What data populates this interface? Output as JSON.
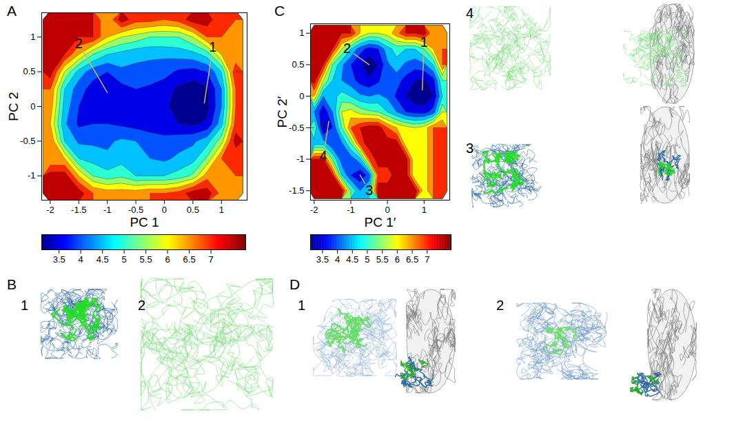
{
  "chart_data": [
    {
      "panel": "A",
      "type": "contour",
      "x_label": "PC 1",
      "y_label": "PC 2",
      "xlim": [
        -2.15,
        1.45
      ],
      "ylim": [
        -1.35,
        1.35
      ],
      "xticks": [
        -2,
        -1.5,
        -1,
        -0.5,
        0,
        0.5,
        1
      ],
      "yticks": [
        -1,
        -0.5,
        0,
        0.5,
        1
      ],
      "x": [
        -2,
        -1.75,
        -1.5,
        -1.25,
        -1,
        -0.75,
        -0.5,
        -0.25,
        0,
        0.25,
        0.5,
        0.75,
        1,
        1.25
      ],
      "y": [
        1.25,
        1,
        0.75,
        0.5,
        0.25,
        0,
        -0.25,
        -0.5,
        -0.75,
        -1,
        -1.25
      ],
      "z": [
        [
          null,
          null,
          null,
          null,
          null,
          7.8,
          7.2,
          7.2,
          7.0,
          7.2,
          7.8,
          null,
          null,
          null
        ],
        [
          null,
          null,
          null,
          7.5,
          6.5,
          6.0,
          5.8,
          5.5,
          5.5,
          5.5,
          6.0,
          7.0,
          null,
          null
        ],
        [
          null,
          7.5,
          6.5,
          5.5,
          5.0,
          4.8,
          4.6,
          4.6,
          4.6,
          4.7,
          4.8,
          5.2,
          6.5,
          null
        ],
        [
          7.8,
          6.0,
          4.8,
          4.2,
          4.0,
          4.4,
          4.4,
          4.3,
          4.2,
          3.9,
          3.8,
          4.0,
          5.0,
          7.5
        ],
        [
          7.0,
          5.0,
          4.2,
          3.8,
          3.6,
          3.8,
          4.0,
          3.9,
          3.7,
          3.4,
          3.2,
          3.4,
          4.5,
          7.0
        ],
        [
          6.8,
          4.8,
          4.0,
          3.8,
          3.7,
          3.9,
          3.8,
          3.8,
          3.6,
          3.3,
          3.1,
          3.3,
          4.5,
          7.0
        ],
        [
          6.5,
          4.6,
          3.9,
          4.0,
          4.0,
          3.9,
          3.8,
          3.7,
          3.6,
          3.5,
          3.4,
          3.6,
          4.8,
          7.2
        ],
        [
          7.0,
          5.0,
          4.4,
          4.4,
          4.4,
          4.6,
          4.5,
          4.3,
          4.2,
          4.3,
          4.4,
          4.8,
          5.8,
          7.8
        ],
        [
          null,
          6.5,
          5.0,
          4.8,
          4.6,
          4.8,
          4.6,
          4.5,
          4.4,
          4.6,
          4.8,
          5.6,
          7.0,
          null
        ],
        [
          null,
          7.8,
          6.5,
          5.5,
          5.2,
          5.4,
          5.0,
          5.0,
          5.0,
          5.2,
          5.6,
          6.8,
          null,
          null
        ],
        [
          null,
          null,
          7.8,
          7.0,
          6.8,
          6.8,
          6.8,
          7.0,
          7.0,
          7.2,
          7.8,
          null,
          null,
          null
        ]
      ],
      "levels": [
        3,
        3.5,
        4,
        4.5,
        5,
        5.5,
        6,
        6.5,
        7,
        7.5
      ],
      "colorbar": {
        "range": [
          3.1,
          7.8
        ],
        "ticks": [
          3.5,
          4,
          4.5,
          5,
          5.5,
          6,
          6.5,
          7
        ]
      },
      "annotations": [
        {
          "text": "1",
          "x": 0.85,
          "y": 0.85,
          "x_to": 0.7,
          "y_to": 0.05
        },
        {
          "text": "2",
          "x": -1.5,
          "y": 0.9,
          "x_to": -1.0,
          "y_to": 0.2
        }
      ]
    },
    {
      "panel": "C",
      "type": "contour",
      "x_label": "PC 1′",
      "y_label": "PC 2′",
      "xlim": [
        -2.1,
        1.7
      ],
      "ylim": [
        -1.65,
        1.15
      ],
      "xticks": [
        -2,
        -1,
        0,
        1
      ],
      "yticks": [
        -1.5,
        -1,
        -0.5,
        0,
        0.5,
        1
      ],
      "x": [
        -2,
        -1.75,
        -1.5,
        -1.25,
        -1,
        -0.75,
        -0.5,
        -0.25,
        0,
        0.25,
        0.5,
        0.75,
        1,
        1.25,
        1.5
      ],
      "y": [
        1,
        0.75,
        0.5,
        0.25,
        0,
        -0.25,
        -0.5,
        -0.75,
        -1,
        -1.25,
        -1.5
      ],
      "z": [
        [
          null,
          null,
          null,
          null,
          7.5,
          6.5,
          6.0,
          6.0,
          6.2,
          6.8,
          7.5,
          7.5,
          7.8,
          null,
          null
        ],
        [
          null,
          null,
          7.5,
          6.0,
          5.0,
          4.2,
          3.8,
          4.0,
          4.8,
          5.2,
          5.0,
          5.0,
          5.5,
          6.5,
          null
        ],
        [
          null,
          7.5,
          5.5,
          4.6,
          4.0,
          3.6,
          3.1,
          3.5,
          4.4,
          4.8,
          4.4,
          4.2,
          4.4,
          5.0,
          7.0
        ],
        [
          7.8,
          6.0,
          5.0,
          4.5,
          4.2,
          3.8,
          3.6,
          3.9,
          4.5,
          4.2,
          3.8,
          3.5,
          3.4,
          3.8,
          5.5
        ],
        [
          6.5,
          4.5,
          4.8,
          5.2,
          5.0,
          4.6,
          4.5,
          4.6,
          4.4,
          3.9,
          3.5,
          3.2,
          3.1,
          3.5,
          5.0
        ],
        [
          4.5,
          3.6,
          4.5,
          6.0,
          6.2,
          5.8,
          5.6,
          5.5,
          5.0,
          4.5,
          4.0,
          3.8,
          3.8,
          4.2,
          6.0
        ],
        [
          5.5,
          3.4,
          4.0,
          5.5,
          7.0,
          7.5,
          7.8,
          7.8,
          7.0,
          6.5,
          6.2,
          6.0,
          6.2,
          7.0,
          null
        ],
        [
          null,
          4.8,
          4.0,
          4.4,
          5.5,
          7.2,
          null,
          null,
          7.8,
          null,
          null,
          null,
          null,
          null,
          null
        ],
        [
          null,
          7.5,
          5.5,
          4.2,
          4.2,
          4.8,
          7.0,
          null,
          7.8,
          null,
          null,
          null,
          null,
          null,
          null
        ],
        [
          null,
          null,
          7.5,
          5.0,
          4.0,
          3.6,
          4.2,
          7.2,
          null,
          null,
          null,
          null,
          null,
          null,
          null
        ],
        [
          null,
          null,
          null,
          7.8,
          5.5,
          4.5,
          5.0,
          7.8,
          null,
          null,
          null,
          null,
          null,
          null,
          null
        ]
      ],
      "levels": [
        3,
        3.5,
        4,
        4.5,
        5,
        5.5,
        6,
        6.5,
        7,
        7.5
      ],
      "colorbar": {
        "range": [
          3.1,
          7.8
        ],
        "ticks": [
          3.5,
          4,
          4.5,
          5,
          5.5,
          6,
          6.5,
          7
        ]
      },
      "annotations": [
        {
          "text": "1",
          "x": 1.0,
          "y": 0.85,
          "x_to": 0.95,
          "y_to": 0.1
        },
        {
          "text": "2",
          "x": -1.1,
          "y": 0.75,
          "x_to": -0.5,
          "y_to": 0.5
        },
        {
          "text": "4",
          "x": -1.75,
          "y": -0.95,
          "x_to": -1.6,
          "y_to": -0.4
        },
        {
          "text": "3",
          "x": -0.5,
          "y": -1.5,
          "x_to": -0.75,
          "y_to": -1.25
        }
      ]
    }
  ],
  "structure_panels": [
    {
      "panel": "B",
      "labels": [
        "1",
        "2"
      ]
    },
    {
      "panel": "C",
      "labels": [
        "4",
        "3"
      ]
    },
    {
      "panel": "D",
      "labels": [
        "1",
        "2"
      ]
    }
  ]
}
